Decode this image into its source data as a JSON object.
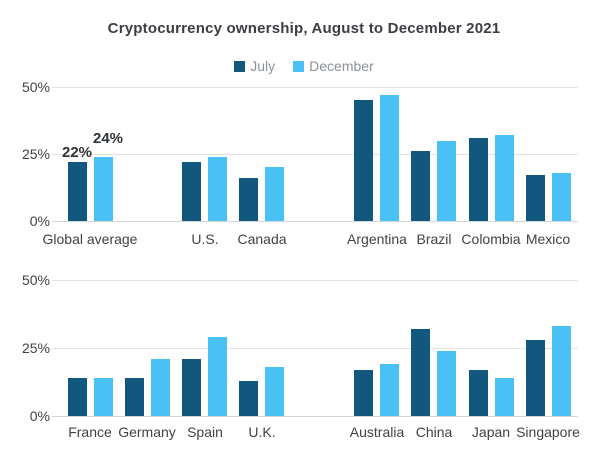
{
  "title": "Cryptocurrency ownership, August to December 2021",
  "legend": {
    "july": {
      "label": "July",
      "color": "#12587e"
    },
    "december": {
      "label": "December",
      "color": "#49c1f4"
    }
  },
  "colors": {
    "july_bar": "#12587e",
    "december_bar": "#49c1f4",
    "gridline": "#e2e2e2",
    "axis_text": "#3f4247",
    "title_text": "#3b3e42",
    "legend_text": "#8c9196"
  },
  "chart_data": [
    {
      "type": "bar",
      "title": "Cryptocurrency ownership, August to December 2021",
      "xlabel": "",
      "ylabel": "",
      "ylim": [
        0,
        50
      ],
      "yticks": [
        {
          "value": 0,
          "label": "0%"
        },
        {
          "value": 25,
          "label": "25%"
        },
        {
          "value": 50,
          "label": "50%"
        }
      ],
      "grid": true,
      "legend_position": "top-center",
      "categories": [
        "Global average",
        "U.S.",
        "Canada",
        "Argentina",
        "Brazil",
        "Colombia",
        "Mexico"
      ],
      "series": [
        {
          "name": "July",
          "values": [
            22,
            22,
            16,
            45,
            26,
            31,
            17
          ]
        },
        {
          "name": "December",
          "values": [
            24,
            24,
            20,
            47,
            30,
            32,
            18
          ]
        }
      ],
      "data_labels": [
        {
          "category": "Global average",
          "series": "July",
          "text": "22%"
        },
        {
          "category": "Global average",
          "series": "December",
          "text": "24%"
        }
      ]
    },
    {
      "type": "bar",
      "title": "",
      "xlabel": "",
      "ylabel": "",
      "ylim": [
        0,
        50
      ],
      "yticks": [
        {
          "value": 0,
          "label": "0%"
        },
        {
          "value": 25,
          "label": "25%"
        },
        {
          "value": 50,
          "label": "50%"
        }
      ],
      "grid": true,
      "categories": [
        "France",
        "Germany",
        "Spain",
        "U.K.",
        "Australia",
        "China",
        "Japan",
        "Singapore"
      ],
      "series": [
        {
          "name": "July",
          "values": [
            14,
            14,
            21,
            13,
            17,
            32,
            17,
            28
          ]
        },
        {
          "name": "December",
          "values": [
            14,
            21,
            29,
            18,
            19,
            24,
            14,
            33
          ]
        }
      ],
      "data_labels": []
    }
  ]
}
